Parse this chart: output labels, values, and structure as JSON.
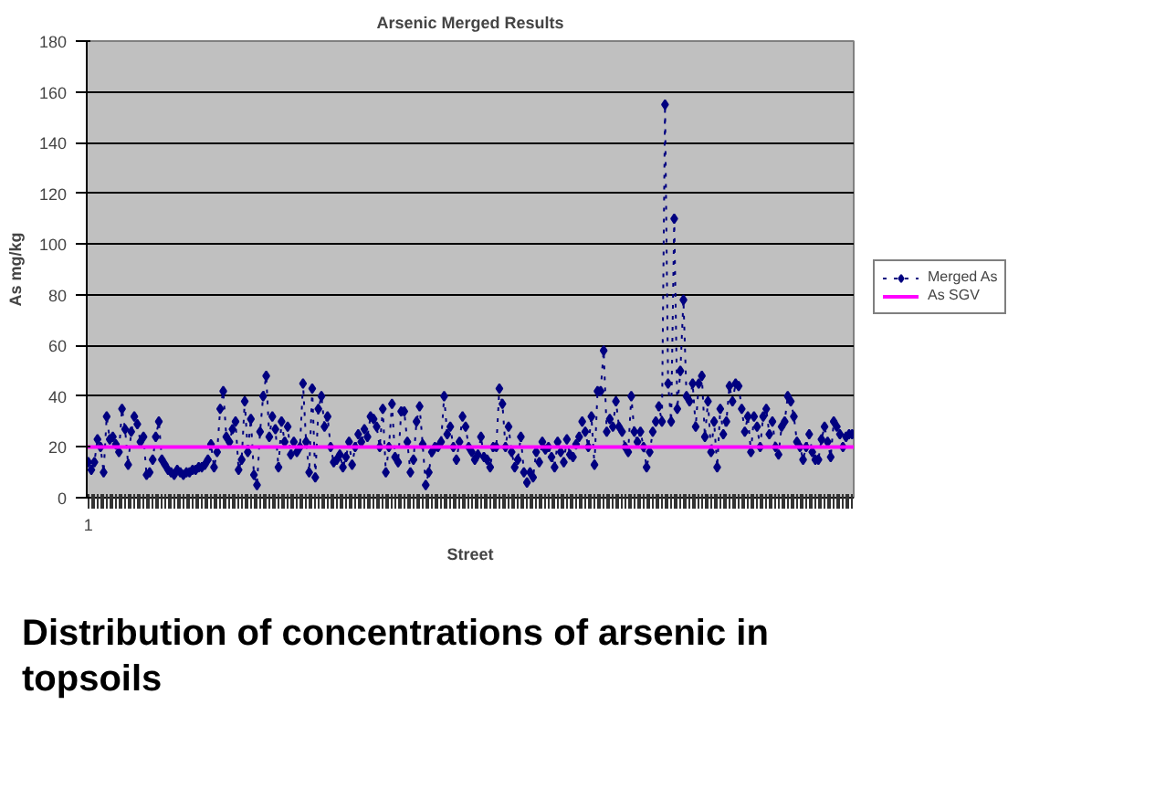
{
  "chart_data": {
    "type": "line",
    "title": "Arsenic Merged Results",
    "xlabel": "Street",
    "ylabel": "As mg/kg",
    "annotations": [
      "Distribution of concentrations of arsenic in topsoils"
    ],
    "categories": [
      "1",
      null,
      null,
      null,
      null,
      null,
      null,
      null,
      null,
      null,
      null,
      null,
      null,
      null,
      null,
      null,
      null,
      null,
      null,
      null,
      null,
      null,
      null,
      null,
      null,
      null,
      null,
      null,
      null,
      null,
      null,
      null,
      null,
      null,
      null,
      null,
      null,
      null,
      null,
      null,
      null,
      null,
      null,
      null,
      null,
      null,
      null,
      null,
      null,
      null,
      null,
      null,
      null,
      null,
      null,
      null,
      null,
      null,
      null,
      null,
      null,
      null,
      null,
      null,
      null,
      null,
      null,
      null,
      null,
      null,
      null,
      null,
      null,
      null,
      null,
      null,
      null,
      null,
      null,
      null,
      null,
      null,
      null,
      null,
      null,
      null,
      null,
      null,
      null,
      null,
      null,
      null,
      null,
      null,
      null,
      null,
      null,
      null,
      null,
      null,
      null,
      null,
      null,
      null,
      null,
      null,
      null,
      null,
      null,
      null,
      null,
      null,
      null,
      null,
      null,
      null,
      null,
      null,
      null,
      null,
      null,
      null,
      null,
      null,
      null,
      null,
      null,
      null,
      null,
      null,
      null,
      null,
      null,
      null,
      null,
      null,
      null,
      null,
      null,
      null,
      null,
      null,
      null,
      null,
      null,
      null,
      null,
      null,
      null,
      null,
      null,
      null,
      null,
      null,
      null,
      null,
      null,
      null,
      null,
      null,
      null,
      null,
      null,
      null,
      null,
      null,
      null,
      null,
      null,
      null,
      null,
      null,
      null,
      null,
      null,
      null,
      null,
      null,
      null,
      null,
      null,
      null,
      null,
      null,
      null,
      null,
      null,
      null,
      null,
      null,
      null,
      null,
      null,
      null,
      null,
      null,
      null,
      null,
      null,
      null,
      null,
      null,
      null,
      null,
      null,
      null,
      null,
      null,
      null,
      null,
      null,
      null,
      null,
      null,
      null,
      null,
      null,
      null,
      null,
      null,
      null,
      null,
      null,
      null,
      null,
      null,
      null,
      null,
      null,
      null,
      null,
      null,
      null,
      null,
      null,
      null,
      null,
      null,
      null,
      null,
      null,
      null,
      null,
      null,
      null,
      null,
      null,
      null,
      null,
      null
    ],
    "series": [
      {
        "name": "Merged As",
        "color": "#000080",
        "marker": "diamond",
        "line_style": "dotted",
        "values": [
          14,
          11,
          14,
          23,
          20,
          10,
          32,
          23,
          24,
          21,
          18,
          35,
          27,
          13,
          26,
          32,
          29,
          22,
          24,
          9,
          10,
          15,
          24,
          30,
          15,
          13,
          11,
          10,
          9,
          11,
          10,
          9,
          10,
          10,
          11,
          11,
          12,
          12,
          13,
          15,
          21,
          12,
          18,
          35,
          42,
          24,
          22,
          27,
          30,
          11,
          15,
          38,
          18,
          31,
          9,
          5,
          26,
          40,
          48,
          24,
          32,
          27,
          12,
          30,
          22,
          28,
          17,
          22,
          18,
          20,
          45,
          22,
          10,
          43,
          8,
          35,
          40,
          28,
          32,
          20,
          14,
          15,
          17,
          12,
          16,
          22,
          13,
          20,
          25,
          22,
          27,
          24,
          32,
          31,
          28,
          20,
          35,
          10,
          20,
          37,
          16,
          14,
          34,
          34,
          22,
          10,
          15,
          30,
          36,
          21,
          5,
          10,
          18,
          20,
          20,
          22,
          40,
          25,
          28,
          20,
          15,
          22,
          32,
          28,
          20,
          18,
          15,
          17,
          24,
          16,
          15,
          12,
          20,
          20,
          43,
          37,
          20,
          28,
          18,
          12,
          15,
          24,
          10,
          6,
          10,
          8,
          18,
          14,
          22,
          19,
          20,
          16,
          12,
          22,
          18,
          14,
          23,
          17,
          16,
          21,
          24,
          30,
          26,
          20,
          32,
          13,
          42,
          42,
          58,
          26,
          31,
          28,
          38,
          28,
          26,
          20,
          18,
          40,
          26,
          22,
          26,
          20,
          12,
          18,
          26,
          30,
          36,
          30,
          155,
          45,
          30,
          110,
          35,
          50,
          78,
          40,
          38,
          45,
          28,
          45,
          48,
          24,
          38,
          18,
          30,
          12,
          35,
          25,
          30,
          44,
          38,
          45,
          44,
          35,
          26,
          32,
          18,
          32,
          28,
          20,
          32,
          35,
          25,
          30,
          20,
          17,
          28,
          30,
          40,
          38,
          32,
          22,
          20,
          15,
          20,
          25,
          18,
          15,
          15,
          23,
          28,
          22,
          16,
          30,
          28,
          25,
          20,
          24,
          25,
          25
        ]
      }
    ],
    "ref_lines": [
      {
        "axis": "y",
        "value": 20,
        "label": "As SGV",
        "color": "#ff00ff",
        "line_style": "solid"
      }
    ],
    "ylim": [
      0,
      180
    ],
    "yticks": [
      0,
      20,
      40,
      60,
      80,
      100,
      120,
      140,
      160,
      180
    ],
    "grid": "y",
    "legend": "right"
  }
}
